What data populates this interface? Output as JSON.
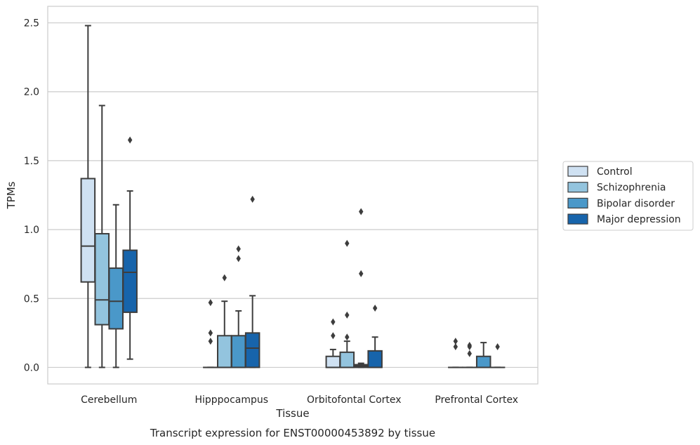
{
  "chart_data": {
    "type": "box",
    "xlabel": "Tissue",
    "ylabel": "TPMs",
    "caption": "Transcript expression for ENST00000453892 by tissue",
    "ylim": [
      -0.12,
      2.62
    ],
    "yticks": [
      "0.0",
      "0.5",
      "1.0",
      "1.5",
      "2.0",
      "2.5"
    ],
    "ytick_values": [
      0,
      0.5,
      1.0,
      1.5,
      2.0,
      2.5
    ],
    "grid": true,
    "legend_position": "right",
    "categories": [
      "Cerebellum",
      "Hipppocampus",
      "Orbitofontal Cortex",
      "Prefrontal Cortex"
    ],
    "series": [
      {
        "name": "Control",
        "color": "#cfe1f2",
        "boxes": [
          {
            "whisker_low": 0,
            "q1": 0.62,
            "median": 0.88,
            "q3": 1.37,
            "whisker_high": 2.48,
            "outliers": []
          },
          {
            "whisker_low": 0,
            "q1": 0,
            "median": 0,
            "q3": 0,
            "whisker_high": 0,
            "outliers": [
              0.47,
              0.25,
              0.19
            ]
          },
          {
            "whisker_low": 0,
            "q1": 0,
            "median": 0,
            "q3": 0.08,
            "whisker_high": 0.13,
            "outliers": [
              0.33,
              0.23
            ]
          },
          {
            "whisker_low": 0,
            "q1": 0,
            "median": 0,
            "q3": 0,
            "whisker_high": 0,
            "outliers": [
              0.19,
              0.15
            ]
          }
        ]
      },
      {
        "name": "Schizophrenia",
        "color": "#93c4de",
        "boxes": [
          {
            "whisker_low": 0,
            "q1": 0.31,
            "median": 0.49,
            "q3": 0.97,
            "whisker_high": 1.9,
            "outliers": []
          },
          {
            "whisker_low": 0,
            "q1": 0,
            "median": 0,
            "q3": 0.23,
            "whisker_high": 0.48,
            "outliers": [
              0.65
            ]
          },
          {
            "whisker_low": 0,
            "q1": 0,
            "median": 0,
            "q3": 0.11,
            "whisker_high": 0.19,
            "outliers": [
              0.9,
              0.38,
              0.22
            ]
          },
          {
            "whisker_low": 0,
            "q1": 0,
            "median": 0,
            "q3": 0,
            "whisker_high": 0,
            "outliers": [
              0.16,
              0.15,
              0.1
            ]
          }
        ]
      },
      {
        "name": "Bipolar disorder",
        "color": "#4a98c9",
        "boxes": [
          {
            "whisker_low": 0,
            "q1": 0.28,
            "median": 0.48,
            "q3": 0.72,
            "whisker_high": 1.18,
            "outliers": []
          },
          {
            "whisker_low": 0,
            "q1": 0,
            "median": 0,
            "q3": 0.23,
            "whisker_high": 0.41,
            "outliers": [
              0.86,
              0.79
            ]
          },
          {
            "whisker_low": 0,
            "q1": 0,
            "median": 0.01,
            "q3": 0.02,
            "whisker_high": 0.03,
            "outliers": [
              1.13,
              0.68
            ]
          },
          {
            "whisker_low": 0,
            "q1": 0,
            "median": 0,
            "q3": 0.08,
            "whisker_high": 0.18,
            "outliers": []
          }
        ]
      },
      {
        "name": "Major depression",
        "color": "#1764ab",
        "boxes": [
          {
            "whisker_low": 0.06,
            "q1": 0.4,
            "median": 0.69,
            "q3": 0.85,
            "whisker_high": 1.28,
            "outliers": [
              1.65
            ]
          },
          {
            "whisker_low": 0,
            "q1": 0,
            "median": 0.14,
            "q3": 0.25,
            "whisker_high": 0.52,
            "outliers": [
              1.22
            ]
          },
          {
            "whisker_low": 0,
            "q1": 0,
            "median": 0,
            "q3": 0.12,
            "whisker_high": 0.22,
            "outliers": [
              0.43
            ]
          },
          {
            "whisker_low": 0,
            "q1": 0,
            "median": 0,
            "q3": 0,
            "whisker_high": 0,
            "outliers": [
              0.15
            ]
          }
        ]
      }
    ]
  }
}
